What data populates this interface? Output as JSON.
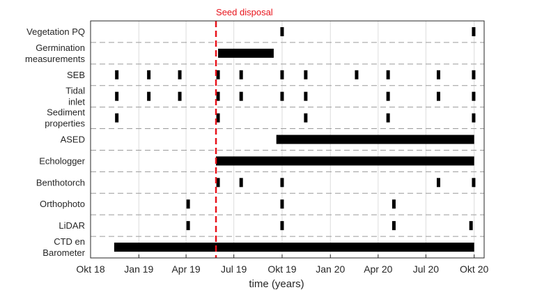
{
  "chart_data": {
    "type": "gantt",
    "xlabel": "time (years)",
    "xticks": [
      "Okt 18",
      "Jan 19",
      "Apr 19",
      "Jul 19",
      "Okt 19",
      "Jan 20",
      "Apr 20",
      "Jul 20",
      "Okt 20"
    ],
    "xlim": [
      "2018-10-01",
      "2020-10-20"
    ],
    "grid": true,
    "annotation": {
      "label": "Seed disposal",
      "date": "2019-05-28",
      "color": "#e8141c"
    },
    "bar_color": "#000000",
    "rows": [
      {
        "label": [
          "Vegetation PQ"
        ],
        "events": [
          "2019-10-01",
          "2020-09-30"
        ],
        "periods": []
      },
      {
        "label": [
          "Germination",
          "measurements"
        ],
        "events": [],
        "periods": [
          [
            "2019-06-01",
            "2019-09-15"
          ]
        ]
      },
      {
        "label": [
          "SEB"
        ],
        "events": [
          "2018-11-20",
          "2019-01-20",
          "2019-03-20",
          "2019-06-01",
          "2019-07-15",
          "2019-10-01",
          "2019-11-15",
          "2020-02-20",
          "2020-04-20",
          "2020-07-25",
          "2020-09-30"
        ],
        "periods": []
      },
      {
        "label": [
          "Tidal",
          "inlet"
        ],
        "events": [
          "2018-11-20",
          "2019-01-20",
          "2019-03-20",
          "2019-06-01",
          "2019-07-15",
          "2019-10-01",
          "2019-11-15",
          "2020-04-20",
          "2020-07-25",
          "2020-09-30"
        ],
        "periods": []
      },
      {
        "label": [
          "Sediment",
          "properties"
        ],
        "events": [
          "2018-11-20",
          "2019-06-01",
          "2019-11-15",
          "2020-04-20",
          "2020-09-30"
        ],
        "periods": []
      },
      {
        "label": [
          "ASED"
        ],
        "events": [],
        "periods": [
          [
            "2019-09-20",
            "2020-10-01"
          ]
        ]
      },
      {
        "label": [
          "Echologger"
        ],
        "events": [],
        "periods": [
          [
            "2019-05-28",
            "2020-10-01"
          ]
        ]
      },
      {
        "label": [
          "Benthotorch"
        ],
        "events": [
          "2019-06-01",
          "2019-07-15",
          "2019-10-01",
          "2020-07-25",
          "2020-09-30"
        ],
        "periods": []
      },
      {
        "label": [
          "Orthophoto"
        ],
        "events": [
          "2019-04-05",
          "2019-10-01",
          "2020-05-01"
        ],
        "periods": []
      },
      {
        "label": [
          "LiDAR"
        ],
        "events": [
          "2019-04-05",
          "2019-10-01",
          "2020-05-01",
          "2020-09-25"
        ],
        "periods": []
      },
      {
        "label": [
          "CTD en",
          "Barometer"
        ],
        "events": [],
        "periods": [
          [
            "2018-11-15",
            "2020-10-01"
          ]
        ]
      }
    ]
  }
}
